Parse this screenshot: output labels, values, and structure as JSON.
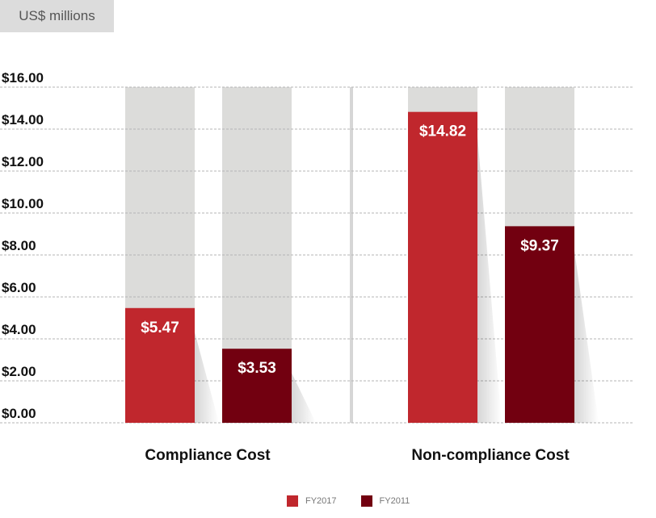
{
  "unit_label": "US$ millions",
  "colors": {
    "fy2017": "#c0272d",
    "fy2011": "#720010",
    "track": "#dcdcda",
    "divider": "#d6d6d6",
    "grid": "#b5b5b5"
  },
  "chart_data": {
    "type": "bar",
    "title": "",
    "xlabel": "",
    "ylabel": "US$ millions",
    "ylim": [
      0,
      16
    ],
    "yticks": [
      0,
      2,
      4,
      6,
      8,
      10,
      12,
      14,
      16
    ],
    "ytick_labels": [
      "$0.00",
      "$2.00",
      "$4.00",
      "$6.00",
      "$8.00",
      "$10.00",
      "$12.00",
      "$14.00",
      "$16.00"
    ],
    "grid": true,
    "categories": [
      "Compliance Cost",
      "Non-compliance Cost"
    ],
    "series": [
      {
        "name": "FY2017",
        "values": [
          5.47,
          14.82
        ],
        "labels": [
          "$5.47",
          "$14.82"
        ]
      },
      {
        "name": "FY2011",
        "values": [
          3.53,
          9.37
        ],
        "labels": [
          "$3.53",
          "$9.37"
        ]
      }
    ],
    "legend_position": "bottom-center"
  }
}
